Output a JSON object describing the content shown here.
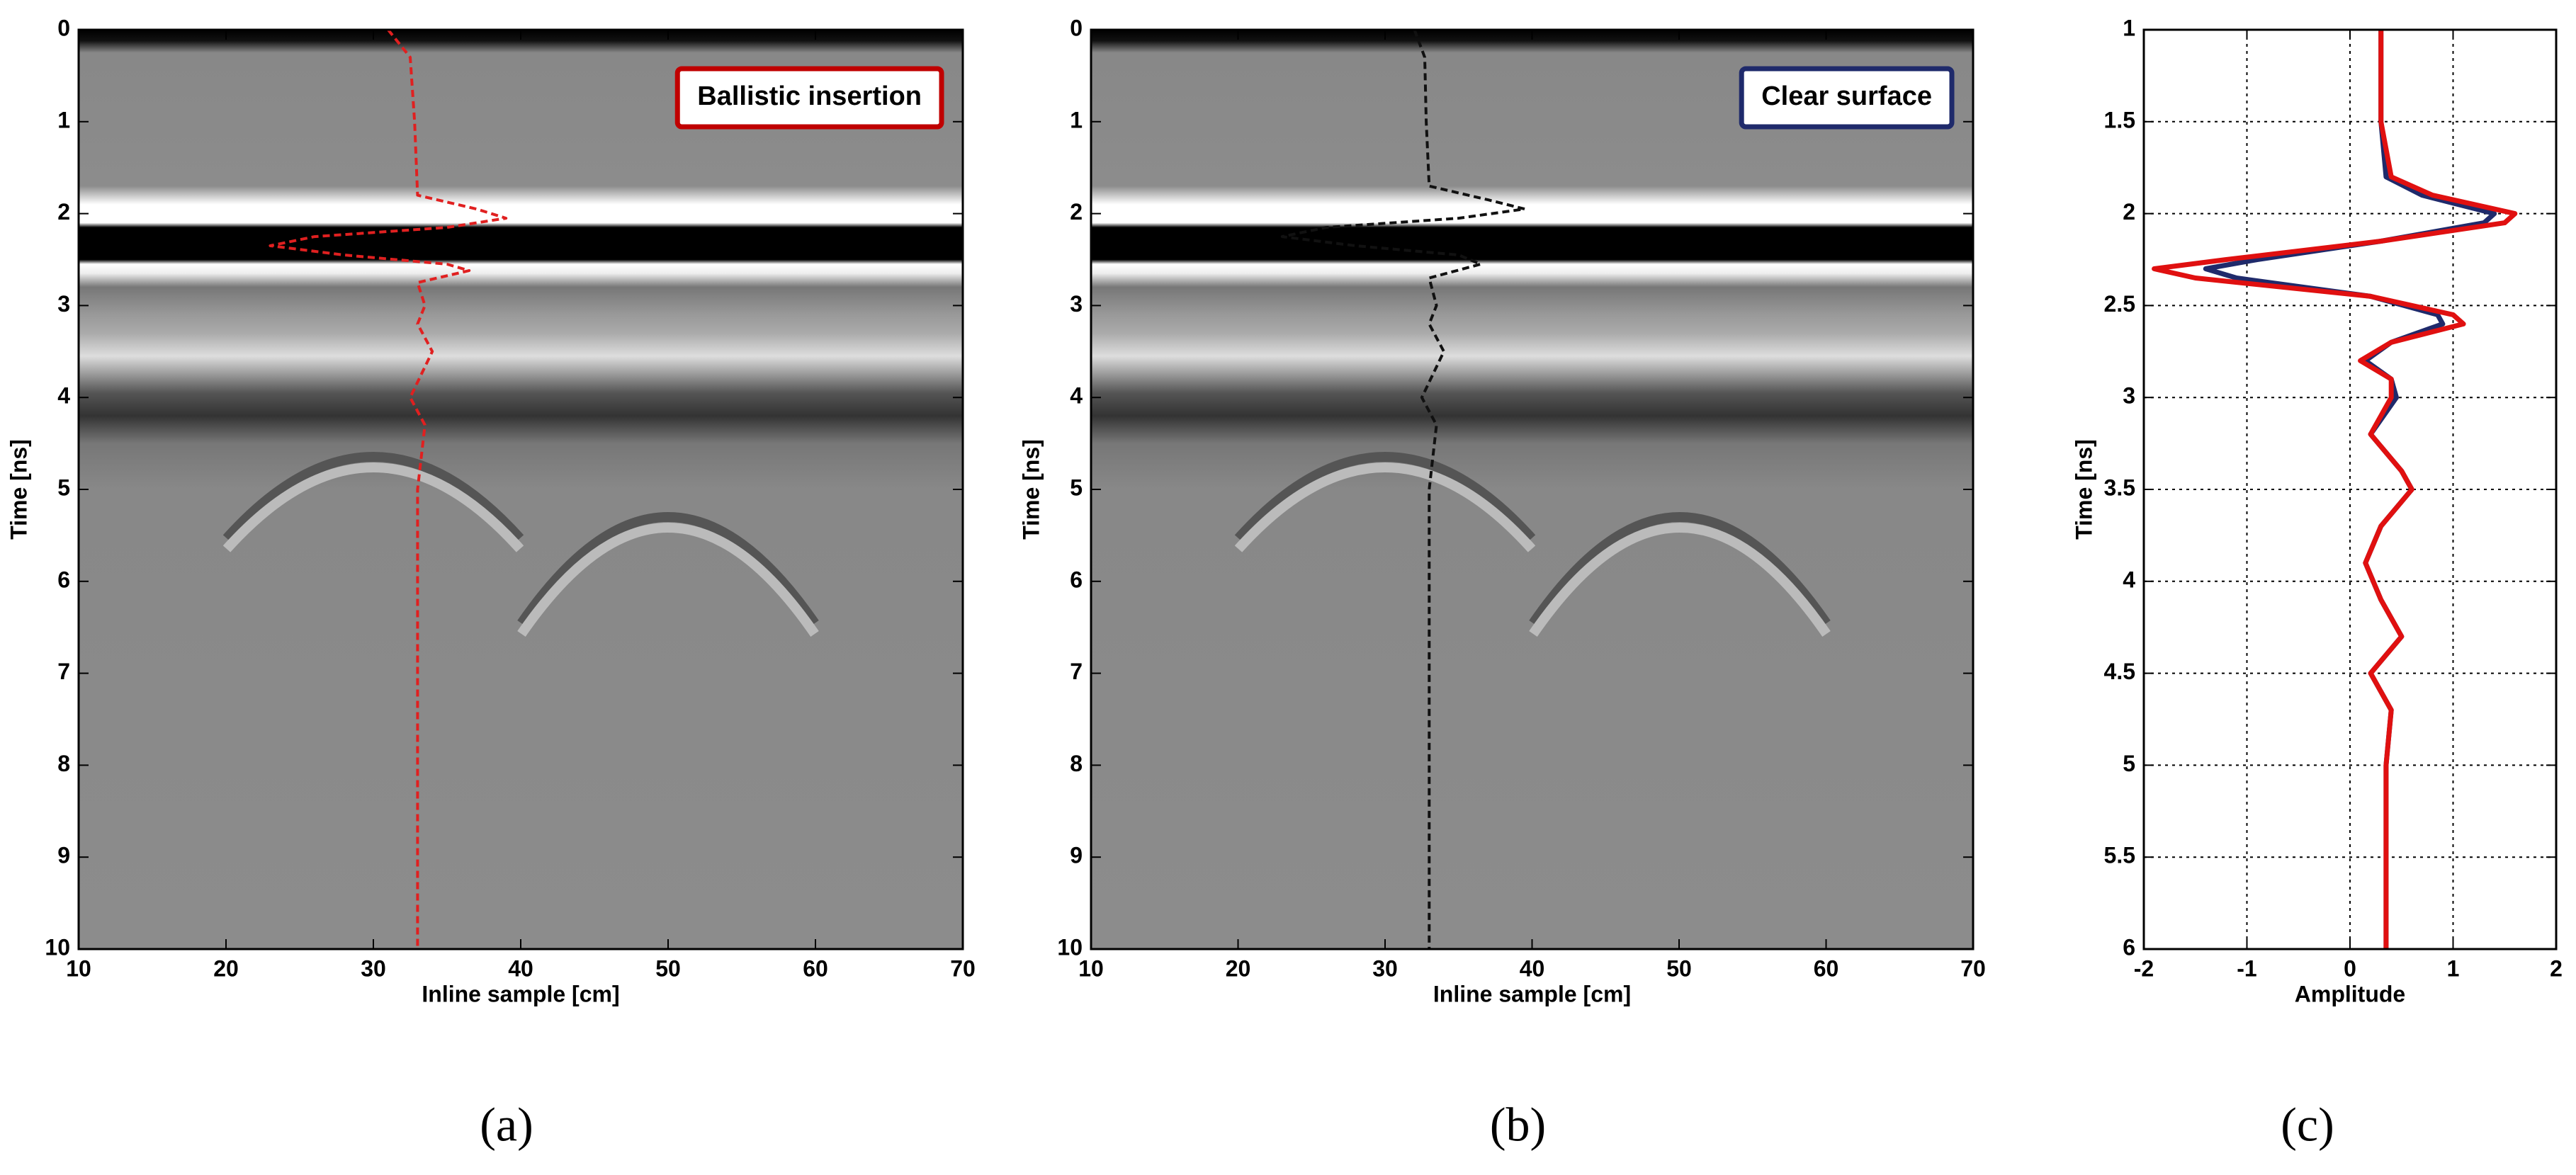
{
  "chart_data": [
    {
      "type": "radargram",
      "label": "(a)",
      "xlabel": "Inline sample [cm]",
      "ylabel": "Time [ns]",
      "xlim": [
        10,
        70
      ],
      "xticks": [
        10,
        20,
        30,
        40,
        50,
        60,
        70
      ],
      "ylim": [
        0,
        10
      ],
      "yticks": [
        0,
        1,
        2,
        3,
        4,
        5,
        6,
        7,
        8,
        9,
        10
      ],
      "y_reversed": true,
      "grid": false,
      "annotation": {
        "text": "Ballistic insertion",
        "border_color": "#c00000"
      },
      "series": [
        {
          "color": "#e02020",
          "x": [
            31,
            32.5,
            32.8,
            33,
            37,
            39,
            35,
            26,
            23,
            28,
            35,
            36.5,
            33,
            33.5,
            33,
            34,
            32.5,
            33.5,
            33,
            33,
            33,
            33,
            33,
            33
          ],
          "y": [
            0,
            0.3,
            1,
            1.8,
            1.95,
            2.05,
            2.15,
            2.25,
            2.35,
            2.45,
            2.55,
            2.62,
            2.75,
            3,
            3.2,
            3.5,
            4,
            4.3,
            5,
            6,
            7,
            8,
            9,
            10
          ]
        }
      ]
    },
    {
      "type": "radargram",
      "label": "(b)",
      "xlabel": "Inline sample [cm]",
      "ylabel": "Time [ns]",
      "xlim": [
        10,
        70
      ],
      "xticks": [
        10,
        20,
        30,
        40,
        50,
        60,
        70
      ],
      "ylim": [
        0,
        10
      ],
      "yticks": [
        0,
        1,
        2,
        3,
        4,
        5,
        6,
        7,
        8,
        9,
        10
      ],
      "y_reversed": true,
      "grid": false,
      "annotation": {
        "text": "Clear surface",
        "border_color": "#1f2a6b"
      },
      "series": [
        {
          "color": "#111111",
          "x": [
            32,
            32.7,
            32.8,
            33,
            37,
            39.5,
            35,
            26,
            23,
            28,
            35,
            36.5,
            33,
            33.5,
            33,
            34,
            32.5,
            33.5,
            33,
            33,
            33,
            33,
            33,
            33
          ],
          "y": [
            0,
            0.3,
            1,
            1.7,
            1.85,
            1.95,
            2.05,
            2.15,
            2.25,
            2.35,
            2.45,
            2.55,
            2.7,
            3,
            3.2,
            3.5,
            4,
            4.3,
            5,
            6,
            7,
            8,
            9,
            10
          ]
        }
      ]
    },
    {
      "type": "line",
      "label": "(c)",
      "xlabel": "Amplitude",
      "ylabel": "Time [ns]",
      "xlim": [
        -2,
        2
      ],
      "xticks": [
        -2,
        -1,
        0,
        1,
        2
      ],
      "ylim": [
        1,
        6
      ],
      "yticks": [
        1,
        1.5,
        2,
        2.5,
        3,
        3.5,
        4,
        4.5,
        5,
        5.5,
        6
      ],
      "y_reversed": true,
      "grid": true,
      "series": [
        {
          "color": "#1f2a6b",
          "x": [
            0.3,
            0.3,
            0.35,
            0.7,
            1.4,
            1.3,
            0.3,
            -0.9,
            -1.4,
            -1.1,
            0.2,
            0.85,
            0.9,
            0.4,
            0.15,
            0.4,
            0.45,
            0.2,
            0.5,
            0.6,
            0.3,
            0.15,
            0.3,
            0.5,
            0.2,
            0.4,
            0.35,
            0.35,
            0.35
          ],
          "y": [
            1,
            1.5,
            1.8,
            1.9,
            2.0,
            2.05,
            2.15,
            2.25,
            2.3,
            2.35,
            2.45,
            2.55,
            2.6,
            2.7,
            2.8,
            2.9,
            3.0,
            3.2,
            3.4,
            3.5,
            3.7,
            3.9,
            4.1,
            4.3,
            4.5,
            4.7,
            5.0,
            5.5,
            6.0
          ]
        },
        {
          "color": "#e01010",
          "x": [
            0.3,
            0.3,
            0.4,
            0.8,
            1.6,
            1.5,
            0.3,
            -1.2,
            -1.9,
            -1.5,
            0.2,
            1.0,
            1.1,
            0.4,
            0.1,
            0.4,
            0.4,
            0.2,
            0.5,
            0.6,
            0.3,
            0.15,
            0.3,
            0.5,
            0.2,
            0.4,
            0.35,
            0.35,
            0.35
          ],
          "y": [
            1,
            1.5,
            1.8,
            1.9,
            2.0,
            2.05,
            2.15,
            2.25,
            2.3,
            2.35,
            2.45,
            2.55,
            2.6,
            2.7,
            2.8,
            2.9,
            3.0,
            3.2,
            3.4,
            3.5,
            3.7,
            3.9,
            4.1,
            4.3,
            4.5,
            4.7,
            5.0,
            5.5,
            6.0
          ]
        }
      ]
    }
  ]
}
